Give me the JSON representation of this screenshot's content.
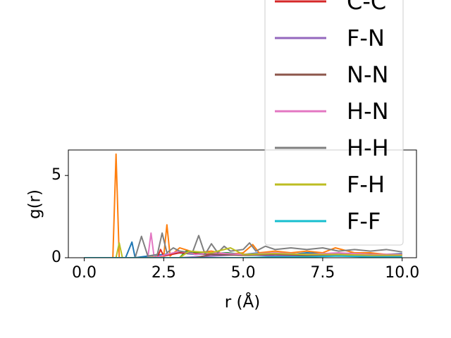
{
  "chart_data": {
    "type": "line",
    "x_label": "r (Å)",
    "y_label": "g(r)",
    "xlim": [
      -0.5,
      10.45
    ],
    "ylim": [
      0,
      6.55
    ],
    "xticks": [
      {
        "value": 0,
        "label": "0.0"
      },
      {
        "value": 2.5,
        "label": "2.5"
      },
      {
        "value": 5,
        "label": "5.0"
      },
      {
        "value": 7.5,
        "label": "7.5"
      },
      {
        "value": 10,
        "label": "10.0"
      }
    ],
    "yticks": [
      0,
      5
    ],
    "legend": "upper right",
    "series": [
      {
        "color": "#1f77b4",
        "x": [
          0,
          1.3,
          1.5,
          1.6,
          2.0,
          2.5,
          3,
          3.5,
          4,
          4.5,
          5,
          5.5,
          6,
          6.5,
          7,
          7.5,
          8,
          8.5,
          9,
          9.5,
          10
        ],
        "values": [
          0,
          0,
          0.95,
          0,
          0.1,
          0.2,
          0.3,
          0.2,
          0.25,
          0.3,
          0.2,
          0.3,
          0.25,
          0.2,
          0.3,
          0.25,
          0.2,
          0.3,
          0.25,
          0.2,
          0.25
        ]
      },
      {
        "color": "#ff7f0e",
        "x": [
          0,
          0.9,
          1.0,
          1.1,
          2.0,
          2.5,
          2.6,
          2.7,
          3.0,
          3.5,
          4.0,
          4.5,
          5.0,
          5.3,
          5.5,
          6,
          6.5,
          7,
          7.5,
          7.9,
          8.5,
          9,
          9.5,
          10
        ],
        "values": [
          0,
          0,
          6.3,
          0,
          0,
          0.1,
          2.0,
          0.1,
          0.6,
          0.3,
          0.4,
          0.2,
          0.3,
          0.8,
          0.3,
          0.4,
          0.3,
          0.4,
          0.3,
          0.6,
          0.3,
          0.3,
          0.2,
          0.2
        ]
      },
      {
        "color": "#2ca02c",
        "x": [
          0,
          3.0,
          3.2,
          3.5,
          4,
          4.5,
          5,
          6,
          7,
          8,
          9,
          10
        ],
        "values": [
          0,
          0,
          0.4,
          0.3,
          0.2,
          0.3,
          0.15,
          0.2,
          0.1,
          0.15,
          0.1,
          0.1
        ]
      },
      {
        "name": "C-C",
        "color": "#d62728",
        "x": [
          0,
          2.3,
          2.4,
          2.5,
          3,
          4,
          5,
          6,
          7,
          8,
          9,
          10
        ],
        "values": [
          0,
          0,
          0.5,
          0.1,
          0.3,
          0.2,
          0.2,
          0.25,
          0.2,
          0.2,
          0.2,
          0.2
        ]
      },
      {
        "name": "F-N",
        "color": "#9467bd",
        "x": [
          0,
          3,
          4,
          5,
          6,
          7,
          8,
          9,
          10
        ],
        "values": [
          0,
          0,
          0.1,
          0.2,
          0.1,
          0.15,
          0.1,
          0.1,
          0.1
        ]
      },
      {
        "name": "N-N",
        "color": "#8c564b",
        "x": [
          0,
          3.5,
          4,
          5,
          6,
          7,
          8,
          9,
          10
        ],
        "values": [
          0,
          0,
          0.2,
          0.15,
          0.2,
          0.15,
          0.2,
          0.15,
          0.2
        ]
      },
      {
        "name": "H-N",
        "color": "#e377c2",
        "x": [
          0,
          2.0,
          2.1,
          2.2,
          3,
          3.5,
          4,
          5,
          6,
          7,
          8,
          9,
          10
        ],
        "values": [
          0,
          0,
          1.5,
          0,
          0.4,
          0.2,
          0.3,
          0.2,
          0.3,
          0.2,
          0.3,
          0.2,
          0.2
        ]
      },
      {
        "name": "H-H",
        "color": "#7f7f7f",
        "x": [
          0,
          1.6,
          1.8,
          2.0,
          2.3,
          2.45,
          2.6,
          2.8,
          3.0,
          3.4,
          3.6,
          3.8,
          4.0,
          4.2,
          4.4,
          4.6,
          5.0,
          5.2,
          5.4,
          5.7,
          6,
          6.5,
          7,
          7.5,
          8,
          8.5,
          9,
          9.5,
          10
        ],
        "values": [
          0,
          0,
          1.3,
          0.1,
          0.2,
          1.5,
          0.3,
          0.6,
          0.4,
          0.3,
          1.35,
          0.2,
          0.85,
          0.3,
          0.7,
          0.4,
          0.5,
          0.9,
          0.4,
          0.7,
          0.5,
          0.6,
          0.5,
          0.6,
          0.4,
          0.5,
          0.4,
          0.5,
          0.35
        ]
      },
      {
        "name": "F-H",
        "color": "#bcbd22",
        "x": [
          0,
          1.0,
          1.1,
          1.2,
          3,
          3.3,
          4,
          4.6,
          5,
          6,
          7,
          8,
          9,
          10
        ],
        "values": [
          0,
          0,
          0.9,
          0,
          0,
          0.4,
          0.3,
          0.6,
          0.2,
          0.25,
          0.2,
          0.2,
          0.15,
          0.15
        ]
      },
      {
        "name": "F-F",
        "color": "#17becf",
        "x": [
          0,
          5,
          6,
          7,
          8,
          9,
          10
        ],
        "values": [
          0,
          0,
          0.05,
          0.05,
          0.1,
          0.05,
          0.05
        ]
      }
    ]
  }
}
